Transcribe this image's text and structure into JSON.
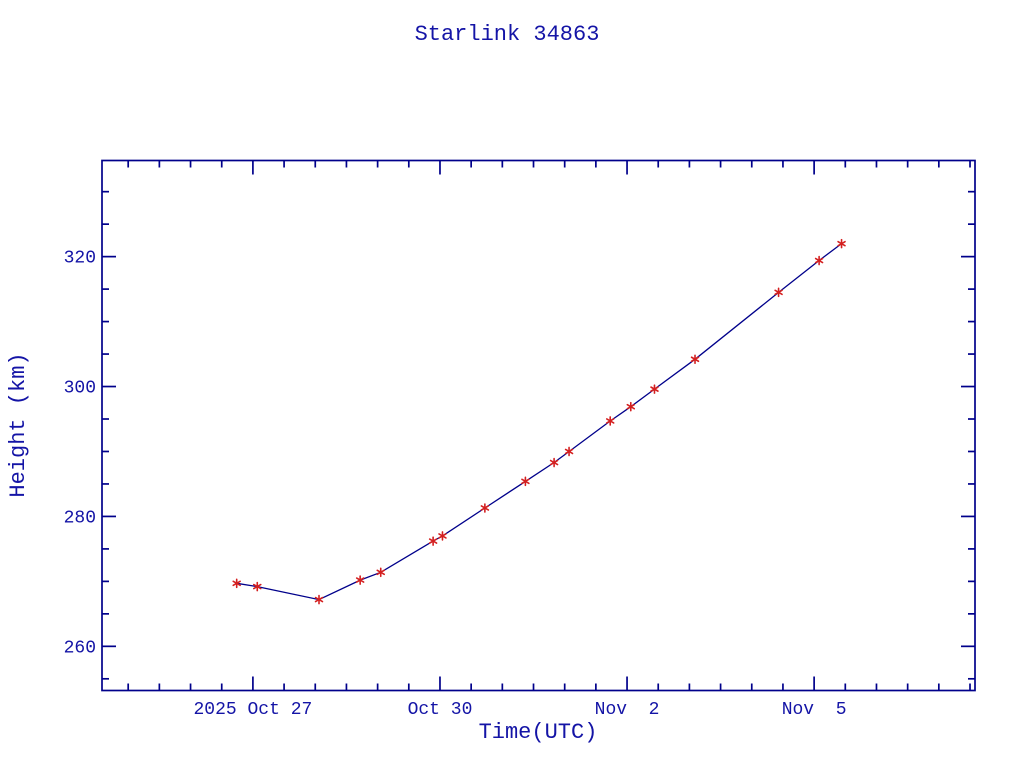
{
  "colors": {
    "background": "#ffffff",
    "axis": "#00008b",
    "text": "#1414a6",
    "line": "#00008b",
    "marker": "#d42020"
  },
  "chart_data": {
    "type": "line",
    "title": "Starlink 34863",
    "xlabel": "Time(UTC)",
    "ylabel": "Height (km)",
    "x_unit": "days since 2025-10-27 00:00 UTC",
    "xlim": [
      -2.42,
      11.58
    ],
    "ylim": [
      253.2,
      334.8
    ],
    "x_major_ticks": [
      0,
      3,
      6,
      9
    ],
    "x_major_labels": [
      "2025 Oct 27",
      "Oct 30",
      "Nov  2",
      "Nov  5"
    ],
    "x_minor_step": 0.5,
    "y_major_ticks": [
      260,
      280,
      300,
      320
    ],
    "y_major_labels": [
      "260",
      "280",
      "300",
      "320"
    ],
    "y_minor_step": 5,
    "grid": false,
    "legend": "none",
    "marker_style": "asterisk",
    "series": [
      {
        "name": "satellite-height",
        "points": [
          {
            "x": -0.26,
            "h": 269.7
          },
          {
            "x": 0.07,
            "h": 269.2
          },
          {
            "x": 1.06,
            "h": 267.2
          },
          {
            "x": 1.72,
            "h": 270.2
          },
          {
            "x": 2.05,
            "h": 271.4
          },
          {
            "x": 2.89,
            "h": 276.2
          },
          {
            "x": 3.04,
            "h": 277.0
          },
          {
            "x": 3.72,
            "h": 281.3
          },
          {
            "x": 4.37,
            "h": 285.4
          },
          {
            "x": 4.83,
            "h": 288.3
          },
          {
            "x": 5.07,
            "h": 290.0
          },
          {
            "x": 5.73,
            "h": 294.7
          },
          {
            "x": 6.06,
            "h": 296.9
          },
          {
            "x": 6.44,
            "h": 299.6
          },
          {
            "x": 7.09,
            "h": 304.2
          },
          {
            "x": 8.43,
            "h": 314.5
          },
          {
            "x": 9.08,
            "h": 319.4
          },
          {
            "x": 9.44,
            "h": 322.0
          }
        ]
      }
    ]
  }
}
